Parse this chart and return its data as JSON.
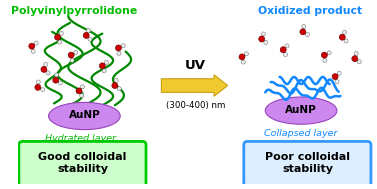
{
  "title_left": "Polyvinylpyrrolidone",
  "title_right": "Oxidized product",
  "title_left_color": "#00bb00",
  "title_right_color": "#1188ff",
  "aunp_color": "#cc88ee",
  "aunp_edge_color": "#9944bb",
  "aunp_label": "AuNP",
  "aunp_label_color": "black",
  "arrow_fill_color": "#f0c830",
  "arrow_edge_color": "#c8a010",
  "arrow_label": "UV",
  "arrow_sublabel": "(300-400) nm",
  "hydrated_label": "Hydrated layer",
  "hydrated_label_color": "#00bb00",
  "collapsed_label": "Collapsed layer",
  "collapsed_label_color": "#1188ff",
  "box_left_text": "Good colloidal\nstability",
  "box_right_text": "Poor colloidal\nstability",
  "box_left_bg": "#ccffcc",
  "box_left_edge": "#00cc00",
  "box_right_bg": "#ddeeff",
  "box_right_edge": "#3399ff",
  "pvp_chain_color": "#008800",
  "collapsed_chain_color": "#1188ff",
  "water_oxygen_color": "#cc0000",
  "water_hydrogen_color": "#f0f0f0",
  "water_bond_color": "#888888",
  "bg_color": "#ffffff",
  "fig_width": 3.77,
  "fig_height": 1.89
}
